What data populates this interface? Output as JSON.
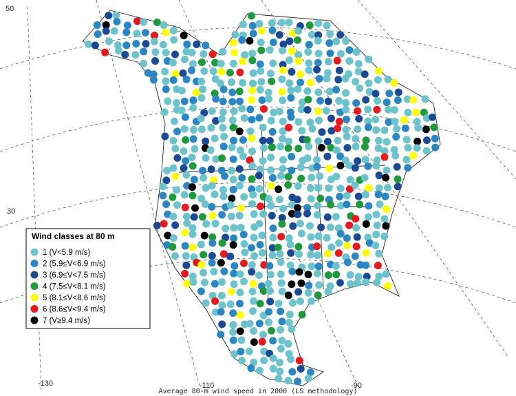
{
  "map": {
    "caption": "Average 80-m wind speed in 2000 (LS methodology)",
    "lat_labels": [
      "50",
      "30"
    ],
    "lon_labels": [
      "-130",
      "-110",
      "-90"
    ],
    "legend": {
      "title": "Wind classes at 80 m",
      "items": [
        {
          "label": "1 (V<5.9 m/s)",
          "color": "#6cc3cc"
        },
        {
          "label": "2 (5.9≤V<6.9 m/s)",
          "color": "#2b87c4"
        },
        {
          "label": "3 (6.9≤V<7.5 m/s)",
          "color": "#1a4a96"
        },
        {
          "label": "4 (7.5≤V<8.1 m/s)",
          "color": "#1e9a3a"
        },
        {
          "label": "5 (8.1≤V<8.6 m/s)",
          "color": "#ffff00"
        },
        {
          "label": "6 (8.6≤V<9.4 m/s)",
          "color": "#e8191c"
        },
        {
          "label": "7 (V≥9.4 m/s)",
          "color": "#000000"
        }
      ]
    }
  }
}
